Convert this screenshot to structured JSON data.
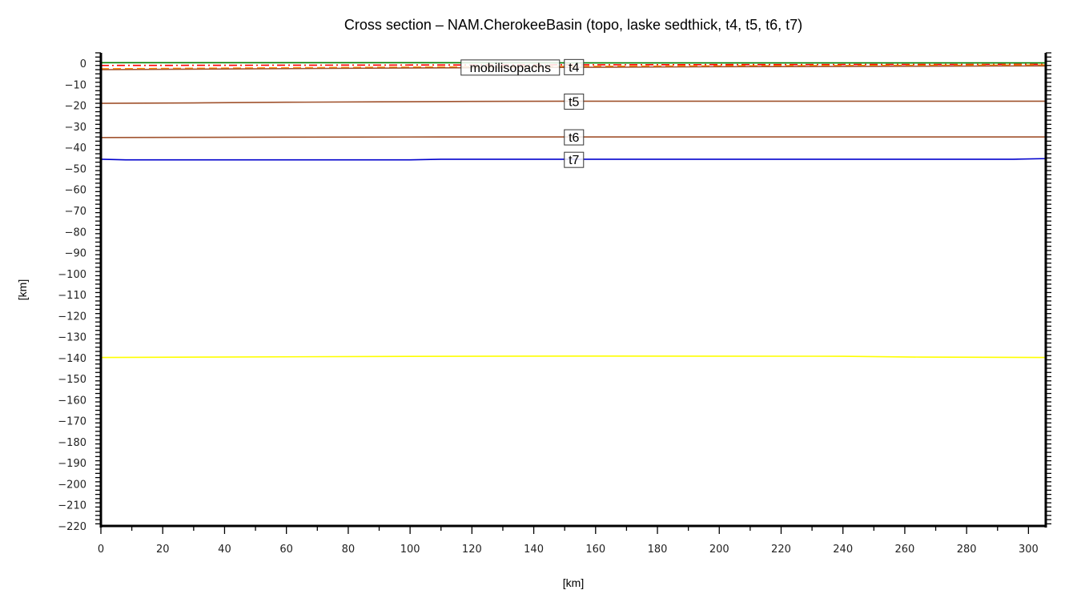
{
  "chart_data": {
    "type": "line",
    "title": "Cross section – NAM.CherokeeBasin (topo, laske sedthick, t4, t5, t6, t7)",
    "xlabel": "[km]",
    "ylabel": "[km]",
    "xlim": [
      0,
      305.6
    ],
    "ylim": [
      -220,
      5
    ],
    "xticks": [
      0,
      20,
      40,
      60,
      80,
      100,
      120,
      140,
      160,
      180,
      200,
      220,
      240,
      260,
      280,
      300
    ],
    "yticks": [
      0,
      -10,
      -20,
      -30,
      -40,
      -50,
      -60,
      -70,
      -80,
      -90,
      -100,
      -110,
      -120,
      -130,
      -140,
      -150,
      -160,
      -170,
      -180,
      -190,
      -200,
      -210,
      -220
    ],
    "grid": false,
    "series": [
      {
        "name": "topo",
        "color": "#008000",
        "style": "solid",
        "x": [
          0,
          100,
          200,
          305.6
        ],
        "y": [
          0.3,
          0.3,
          0.2,
          0.2
        ]
      },
      {
        "name": "laske sedthick",
        "color": "#ff0000",
        "style": "dashdot",
        "x": [
          0,
          100,
          200,
          305.6
        ],
        "y": [
          -1,
          -0.8,
          -0.6,
          -0.5
        ]
      },
      {
        "name": "mobilisopachs",
        "color": "#ff8c00",
        "style": "dashed",
        "x": [
          0,
          100,
          200,
          305.6
        ],
        "y": [
          -2.6,
          -1.8,
          -1.2,
          -0.8
        ]
      },
      {
        "name": "t4",
        "color": "#a0522d",
        "style": "solid",
        "x": [
          0,
          100,
          200,
          305.6
        ],
        "y": [
          -3,
          -2.2,
          -1.6,
          -1.2
        ]
      },
      {
        "name": "t5",
        "color": "#a0522d",
        "style": "solid",
        "x": [
          0,
          30,
          60,
          90,
          120,
          150,
          305.6
        ],
        "y": [
          -19,
          -18.8,
          -18.5,
          -18.3,
          -18.1,
          -18,
          -18
        ]
      },
      {
        "name": "t6",
        "color": "#a0522d",
        "style": "solid",
        "x": [
          0,
          30,
          60,
          110,
          305.6
        ],
        "y": [
          -35.3,
          -35.2,
          -35.1,
          -35,
          -35
        ]
      },
      {
        "name": "t7",
        "color": "#0000cd",
        "style": "solid",
        "x": [
          0,
          8,
          100,
          110,
          295,
          305.6
        ],
        "y": [
          -45.6,
          -45.9,
          -45.9,
          -45.6,
          -45.6,
          -45.3
        ]
      },
      {
        "name": "",
        "color": "#ffff00",
        "style": "solid",
        "x": [
          0,
          35,
          90,
          155,
          240,
          265,
          305.6
        ],
        "y": [
          -139.9,
          -139.7,
          -139.4,
          -139.2,
          -139.3,
          -139.7,
          -139.9
        ]
      }
    ],
    "labels": [
      {
        "text": "mobilisopachs",
        "x": 153,
        "y": -1.8
      },
      {
        "text": "t4",
        "x": 153,
        "y": -1.6
      },
      {
        "text": "t5",
        "x": 153,
        "y": -18
      },
      {
        "text": "t6",
        "x": 153,
        "y": -35
      },
      {
        "text": "t7",
        "x": 153,
        "y": -45.7
      }
    ]
  }
}
